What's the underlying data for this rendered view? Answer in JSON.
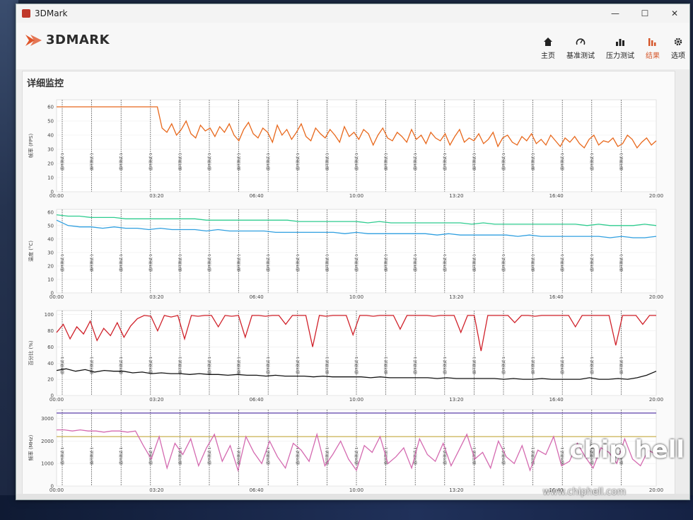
{
  "window": {
    "title": "3DMark"
  },
  "header": {
    "logo_text": "3DMARK"
  },
  "nav": [
    {
      "label": "主页",
      "icon": "home-icon",
      "active": false
    },
    {
      "label": "基准测试",
      "icon": "gauge-icon",
      "active": false
    },
    {
      "label": "压力测试",
      "icon": "bar-chart-icon",
      "active": false
    },
    {
      "label": "结果",
      "icon": "results-icon",
      "active": true
    },
    {
      "label": "选项",
      "icon": "gear-icon",
      "active": false
    }
  ],
  "main": {
    "section_title": "详细监控"
  },
  "watermark": {
    "url": "www.chiphell.com",
    "logo": "chip hell"
  },
  "colors": {
    "accent": "#d5572b",
    "fps": "#e8681c",
    "temp1": "#2ecc8f",
    "temp2": "#2f9fe0",
    "pct1": "#d0212a",
    "pct2": "#111111",
    "freq1": "#6a4fb0",
    "freq2": "#c9b050",
    "freq3": "#d46ab0"
  },
  "chart_data": [
    {
      "type": "line",
      "ylabel": "帧率 (FPS)",
      "yticks": [
        "0",
        "10",
        "20",
        "30",
        "40",
        "50",
        "60"
      ],
      "ylim": [
        0,
        65
      ],
      "xticks": [
        "00:00",
        "03:20",
        "06:40",
        "10:00",
        "13:20",
        "16:40",
        "20:00"
      ],
      "loop_marker": "循环测试 1",
      "series": [
        {
          "name": "",
          "values": [
            60,
            60,
            60,
            60,
            60,
            60,
            60,
            60,
            60,
            60,
            60,
            60,
            60,
            60,
            60,
            60,
            60,
            60,
            60,
            60,
            60,
            60,
            45,
            42,
            48,
            40,
            44,
            50,
            41,
            38,
            47,
            43,
            45,
            39,
            46,
            42,
            48,
            40,
            36,
            44,
            49,
            41,
            38,
            45,
            42,
            35,
            47,
            40,
            44,
            37,
            42,
            48,
            39,
            36,
            45,
            41,
            38,
            44,
            40,
            35,
            46,
            39,
            42,
            37,
            44,
            41,
            33,
            40,
            45,
            38,
            36,
            42,
            39,
            35,
            44,
            37,
            40,
            34,
            42,
            38,
            36,
            41,
            33,
            39,
            44,
            35,
            38,
            36,
            41,
            34,
            37,
            42,
            32,
            38,
            40,
            35,
            33,
            39,
            36,
            41,
            34,
            37,
            33,
            40,
            36,
            32,
            38,
            35,
            39,
            34,
            31,
            37,
            40,
            33,
            36,
            35,
            38,
            32,
            34,
            40,
            37,
            31,
            35,
            38,
            33,
            36
          ]
        }
      ]
    },
    {
      "type": "line",
      "ylabel": "温度 (°C)",
      "yticks": [
        "0",
        "10",
        "20",
        "30",
        "40",
        "50",
        "60"
      ],
      "ylim": [
        0,
        62
      ],
      "xticks": [
        "00:00",
        "03:20",
        "06:40",
        "10:00",
        "13:20",
        "16:40",
        "20:00"
      ],
      "loop_marker": "循环测试 1",
      "series": [
        {
          "name": "",
          "values": [
            58,
            57,
            57,
            56,
            56,
            56,
            55,
            55,
            55,
            55,
            55,
            55,
            55,
            54,
            54,
            54,
            54,
            54,
            54,
            54,
            54,
            53,
            53,
            53,
            53,
            53,
            53,
            52,
            53,
            52,
            52,
            52,
            52,
            52,
            52,
            52,
            51,
            52,
            51,
            51,
            51,
            51,
            51,
            51,
            51,
            51,
            50,
            51,
            50,
            50,
            50,
            51,
            50
          ]
        },
        {
          "name": "",
          "values": [
            54,
            50,
            49,
            49,
            48,
            49,
            48,
            48,
            47,
            48,
            47,
            47,
            47,
            46,
            47,
            46,
            46,
            46,
            46,
            45,
            45,
            45,
            45,
            45,
            45,
            44,
            45,
            44,
            44,
            44,
            44,
            44,
            44,
            43,
            44,
            43,
            43,
            43,
            43,
            43,
            42,
            43,
            42,
            42,
            42,
            42,
            42,
            42,
            41,
            42,
            41,
            41,
            42
          ]
        }
      ]
    },
    {
      "type": "line",
      "ylabel": "百分比 (%)",
      "yticks": [
        "0",
        "20",
        "40",
        "60",
        "80",
        "100"
      ],
      "ylim": [
        0,
        105
      ],
      "xticks": [
        "00:00",
        "03:20",
        "06:40",
        "10:00",
        "13:20",
        "16:40",
        "20:00"
      ],
      "loop_marker": "循环测试 1",
      "series": [
        {
          "name": "",
          "values": [
            78,
            88,
            70,
            85,
            76,
            92,
            68,
            83,
            74,
            90,
            72,
            86,
            95,
            99,
            98,
            80,
            99,
            97,
            99,
            70,
            99,
            98,
            99,
            99,
            85,
            99,
            98,
            99,
            72,
            99,
            99,
            98,
            99,
            99,
            88,
            99,
            99,
            99,
            60,
            99,
            98,
            99,
            99,
            99,
            75,
            99,
            99,
            98,
            99,
            99,
            99,
            82,
            99,
            99,
            99,
            99,
            98,
            99,
            99,
            99,
            78,
            99,
            99,
            55,
            99,
            99,
            99,
            99,
            90,
            99,
            99,
            98,
            99,
            99,
            99,
            99,
            99,
            85,
            99,
            99,
            99,
            99,
            99,
            62,
            99,
            99,
            99,
            88,
            99,
            99
          ]
        },
        {
          "name": "",
          "values": [
            31,
            33,
            30,
            32,
            29,
            31,
            30,
            30,
            28,
            29,
            27,
            28,
            27,
            27,
            26,
            27,
            26,
            26,
            25,
            26,
            25,
            25,
            24,
            25,
            24,
            24,
            24,
            23,
            24,
            23,
            23,
            23,
            23,
            22,
            23,
            22,
            22,
            22,
            22,
            22,
            21,
            22,
            21,
            21,
            21,
            21,
            21,
            20,
            21,
            20,
            20,
            21,
            20,
            20,
            20,
            20,
            22,
            20,
            20,
            21,
            20,
            22,
            25,
            30
          ]
        }
      ]
    },
    {
      "type": "line",
      "ylabel": "频率 (MHz)",
      "yticks": [
        "0",
        "1000",
        "2000",
        "3000"
      ],
      "ylim": [
        0,
        3400
      ],
      "xticks": [
        "00:00",
        "03:20",
        "06:40",
        "10:00",
        "13:20",
        "16:40",
        "20:00"
      ],
      "loop_marker": "循环测试 1",
      "series": [
        {
          "name": "",
          "values": [
            3250,
            3250,
            3250,
            3250,
            3250,
            3250,
            3250,
            3250,
            3250,
            3250,
            3250,
            3250,
            3250,
            3250,
            3250,
            3250,
            3250,
            3250,
            3250,
            3250,
            3250,
            3250,
            3250,
            3250,
            3250,
            3250,
            3250,
            3250,
            3250,
            3250
          ]
        },
        {
          "name": "",
          "values": [
            2200,
            2200,
            2200,
            2200,
            2200,
            2200,
            2200,
            2200,
            2200,
            2200,
            2200,
            2200,
            2200,
            2200,
            2200,
            2200,
            2200,
            2200,
            2200,
            2200,
            2200,
            2200,
            2200,
            2200,
            2200,
            2200,
            2200,
            2200,
            2200,
            2200
          ]
        },
        {
          "name": "",
          "values": [
            2500,
            2500,
            2450,
            2500,
            2450,
            2450,
            2400,
            2450,
            2450,
            2400,
            2450,
            1800,
            1200,
            2200,
            800,
            1900,
            1400,
            2100,
            900,
            1700,
            2300,
            1100,
            1800,
            700,
            2200,
            1500,
            1000,
            2000,
            1300,
            800,
            1900,
            1600,
            1100,
            2300,
            900,
            1400,
            2000,
            1200,
            700,
            1800,
            1500,
            2200,
            1000,
            1300,
            1700,
            800,
            2100,
            1400,
            1100,
            1900,
            900,
            1600,
            2300,
            1200,
            1500,
            800,
            2000,
            1300,
            1000,
            1800,
            700,
            1600,
            1400,
            2200,
            900,
            1100,
            1900,
            1300,
            800,
            1700,
            1500,
            1000,
            2100,
            1200,
            900,
            1600,
            1400
          ]
        }
      ]
    }
  ]
}
